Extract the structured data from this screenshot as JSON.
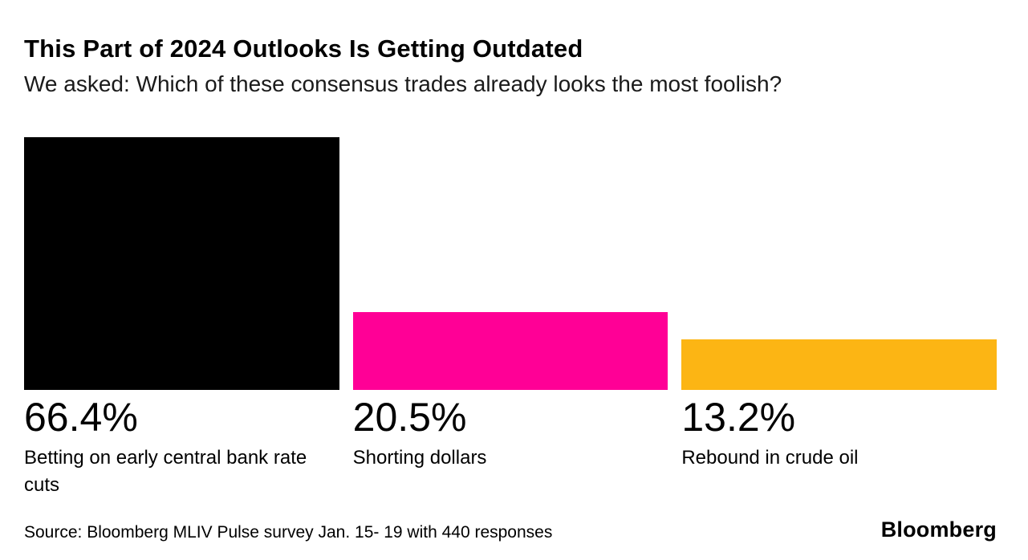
{
  "header": {
    "title": "This Part of 2024 Outlooks Is Getting Outdated",
    "subtitle": "We asked: Which of these consensus trades already looks the most foolish?"
  },
  "chart_data": {
    "type": "bar",
    "categories": [
      "Betting on early central bank rate cuts",
      "Shorting dollars",
      "Rebound in crude oil"
    ],
    "values": [
      66.4,
      20.5,
      13.2
    ],
    "value_labels": [
      "66.4%",
      "20.5%",
      "13.2%"
    ],
    "bar_colors": [
      "#000000",
      "#ff0096",
      "#fcb514"
    ],
    "title": "This Part of 2024 Outlooks Is Getting Outdated",
    "subtitle": "We asked: Which of these consensus trades already looks the most foolish?",
    "xlabel": "",
    "ylabel": "",
    "ylim": [
      0,
      66.4
    ],
    "grid": false,
    "legend": "none",
    "units": "%"
  },
  "footer": {
    "source": "Source: Bloomberg MLIV Pulse survey Jan. 15- 19 with 440 responses",
    "logo": "Bloomberg"
  }
}
